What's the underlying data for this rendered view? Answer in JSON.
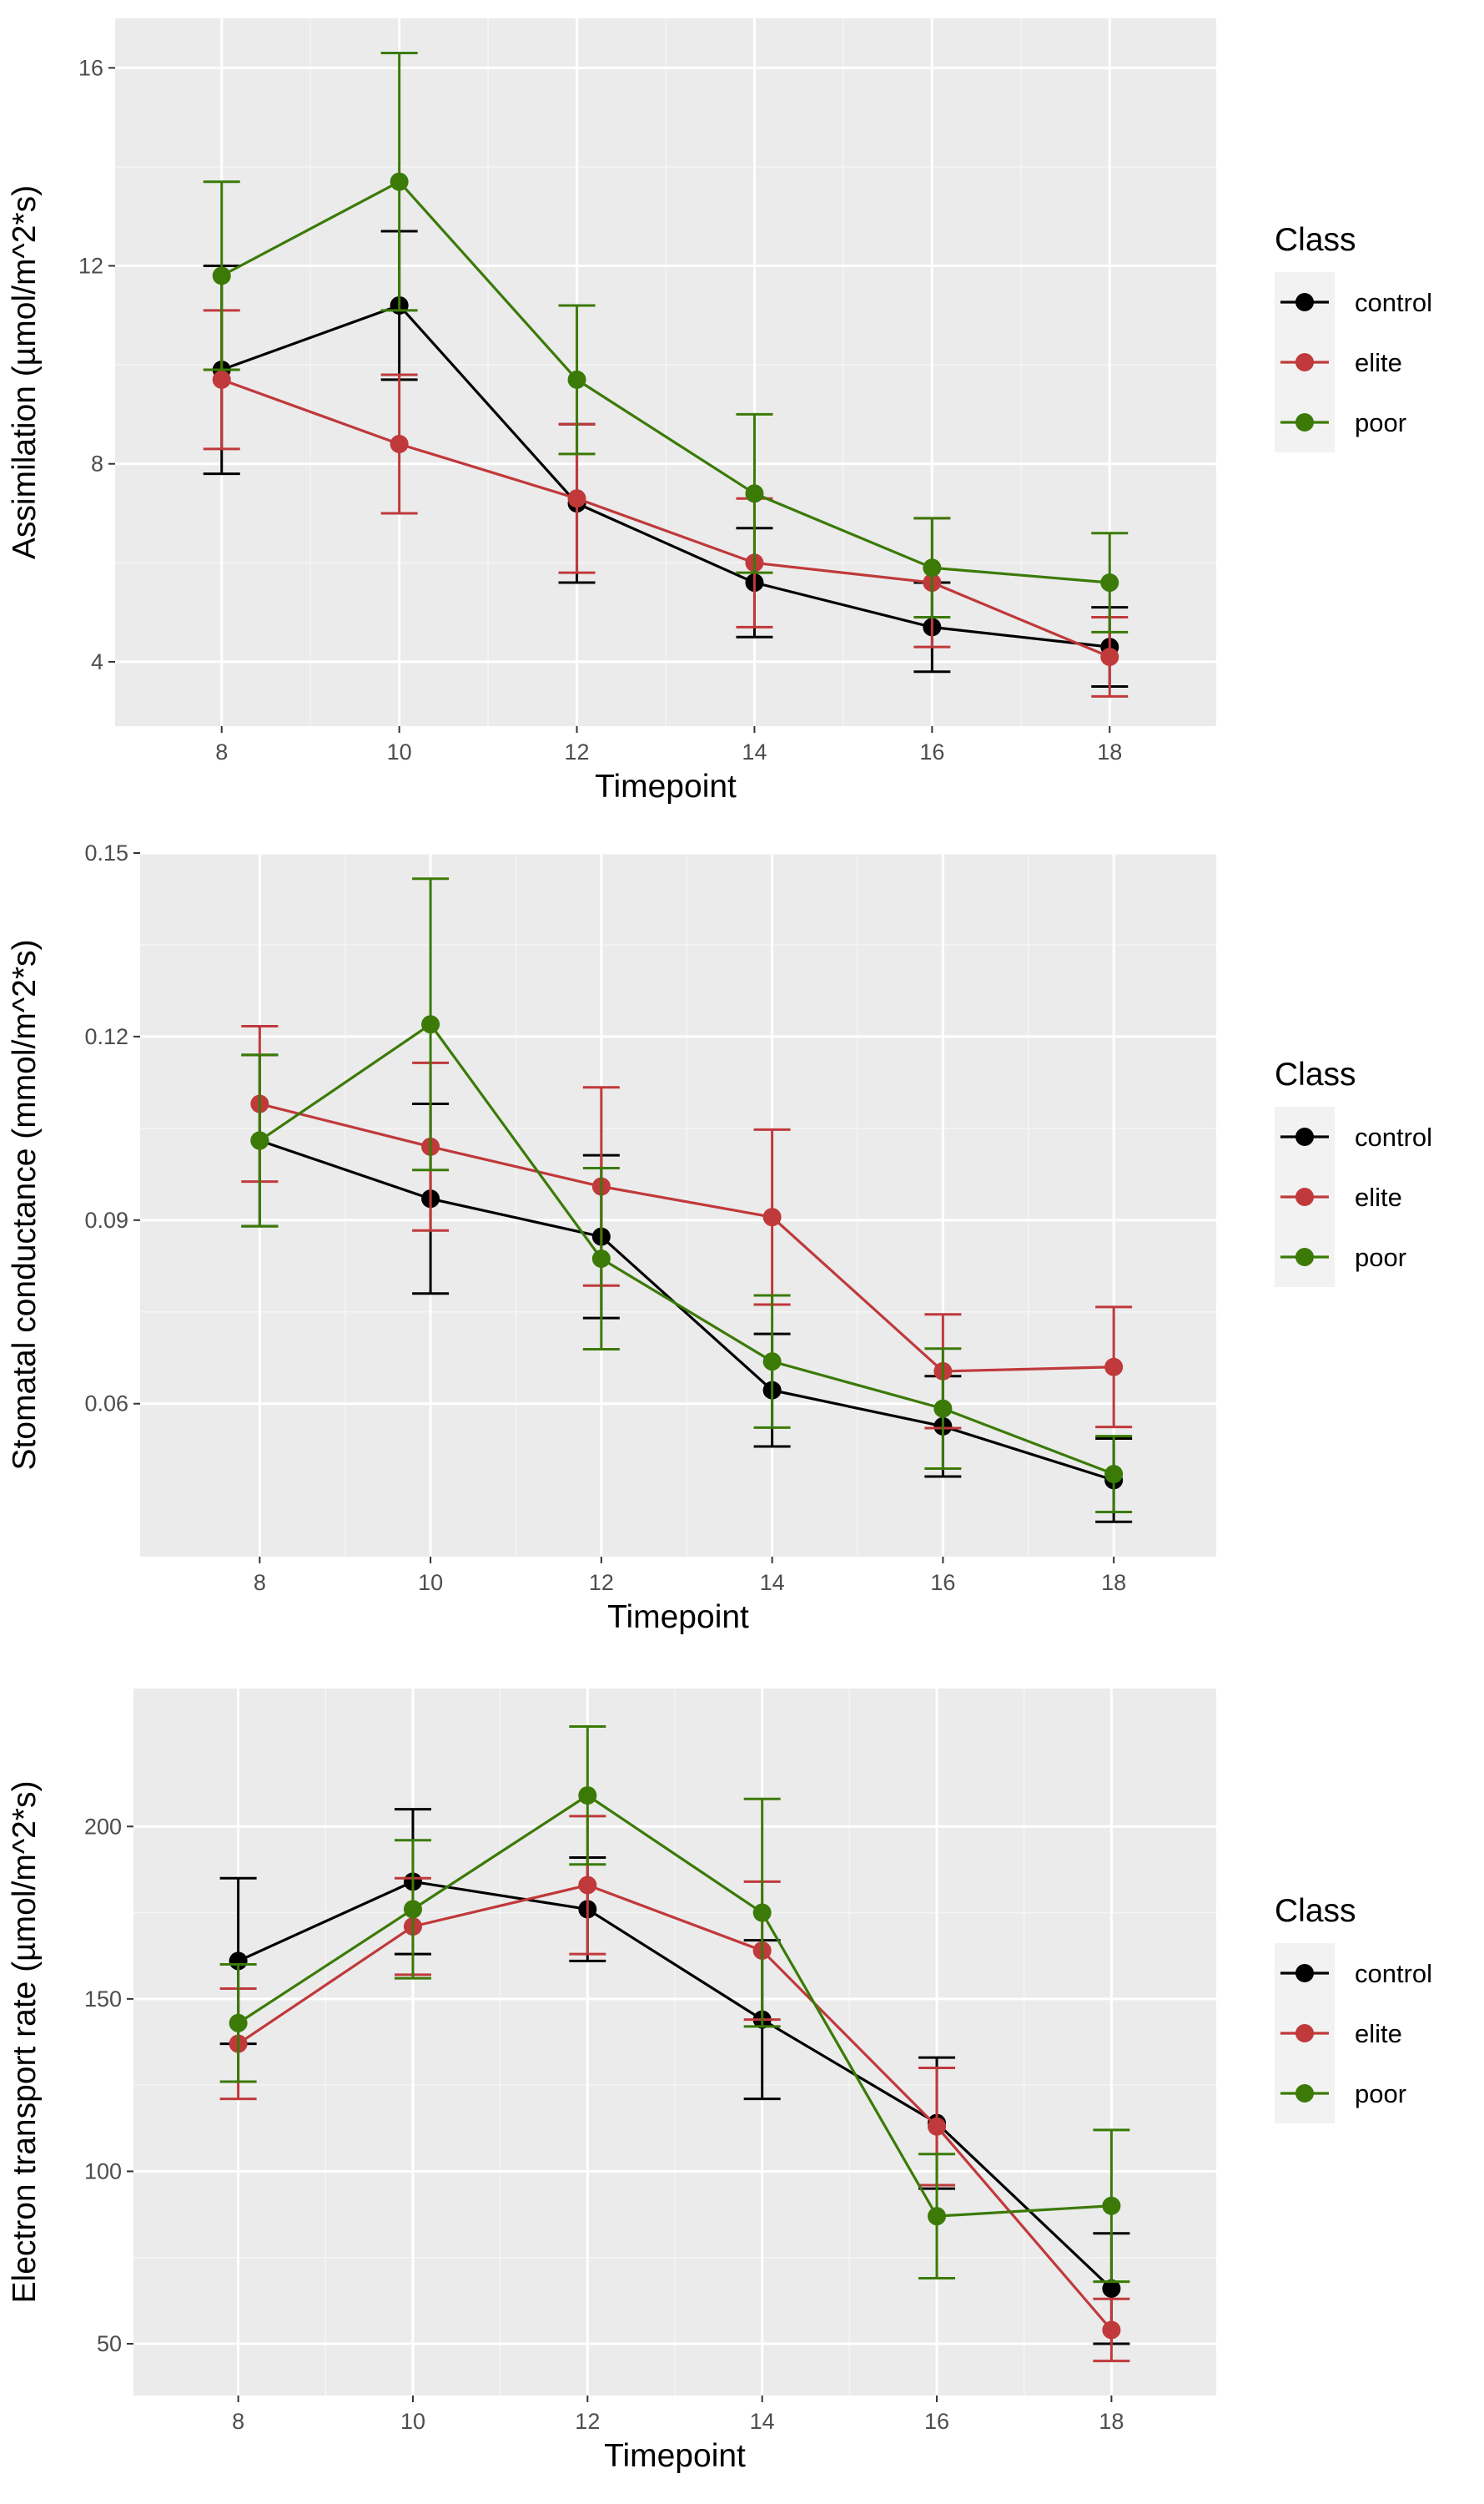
{
  "chart_data": [
    {
      "type": "line",
      "xlabel": "Timepoint",
      "ylabel": "Assimilation (µmol/m^2*s)",
      "x": [
        8,
        10,
        12,
        14,
        16,
        18
      ],
      "xlim": [
        6.8,
        19.2
      ],
      "ylim": [
        2.7,
        17.0
      ],
      "yticks": [
        4,
        8,
        12,
        16
      ],
      "ytick_labels": [
        "4",
        "8",
        "12",
        "16"
      ],
      "grid": true,
      "legend": {
        "title": "Class",
        "position": "right",
        "labels": [
          "control",
          "elite",
          "poor"
        ]
      },
      "series": [
        {
          "name": "control",
          "color": "#000000",
          "values": [
            9.9,
            11.2,
            7.2,
            5.6,
            4.7,
            4.3
          ],
          "err": [
            2.1,
            1.5,
            1.6,
            1.1,
            0.9,
            0.8
          ]
        },
        {
          "name": "elite",
          "color": "#c0393b",
          "values": [
            9.7,
            8.4,
            7.3,
            6.0,
            5.6,
            4.1
          ],
          "err": [
            1.4,
            1.4,
            1.5,
            1.3,
            1.3,
            0.8
          ]
        },
        {
          "name": "poor",
          "color": "#3b7a07",
          "values": [
            11.8,
            13.7,
            9.7,
            7.4,
            5.9,
            5.6
          ],
          "err": [
            1.9,
            2.6,
            1.5,
            1.6,
            1.0,
            1.0
          ]
        }
      ]
    },
    {
      "type": "line",
      "xlabel": "Timepoint",
      "ylabel": "Stomatal conductance (mmol/m^2*s)",
      "x": [
        8,
        10,
        12,
        14,
        16,
        18
      ],
      "xlim": [
        6.6,
        19.2
      ],
      "ylim": [
        0.035,
        0.15
      ],
      "yticks": [
        0.06,
        0.09,
        0.12,
        0.15
      ],
      "ytick_labels": [
        "0.06",
        "0.09",
        "0.12",
        "0.15"
      ],
      "grid": true,
      "legend": {
        "title": "Class",
        "position": "right",
        "labels": [
          "control",
          "elite",
          "poor"
        ]
      },
      "series": [
        {
          "name": "control",
          "color": "#000000",
          "values": [
            0.103,
            0.0935,
            0.0873,
            0.0622,
            0.0563,
            0.0475
          ],
          "err": [
            0.014,
            0.0155,
            0.0133,
            0.0092,
            0.0082,
            0.0068
          ]
        },
        {
          "name": "elite",
          "color": "#c0393b",
          "values": [
            0.109,
            0.102,
            0.0955,
            0.0905,
            0.0653,
            0.066
          ],
          "err": [
            0.0127,
            0.0137,
            0.0162,
            0.0143,
            0.0093,
            0.0098
          ]
        },
        {
          "name": "poor",
          "color": "#3b7a07",
          "values": [
            0.103,
            0.122,
            0.0837,
            0.0669,
            0.0592,
            0.0485
          ],
          "err": [
            0.014,
            0.0238,
            0.0148,
            0.0108,
            0.0098,
            0.0062
          ]
        }
      ]
    },
    {
      "type": "line",
      "xlabel": "Timepoint",
      "ylabel": "Electron transport rate (µmol/m^2*s)",
      "x": [
        8,
        10,
        12,
        14,
        16,
        18
      ],
      "xlim": [
        6.8,
        19.2
      ],
      "ylim": [
        35,
        240
      ],
      "yticks": [
        50,
        100,
        150,
        200
      ],
      "ytick_labels": [
        "50",
        "100",
        "150",
        "200"
      ],
      "grid": true,
      "legend": {
        "title": "Class",
        "position": "right",
        "labels": [
          "control",
          "elite",
          "poor"
        ]
      },
      "series": [
        {
          "name": "control",
          "color": "#000000",
          "values": [
            161,
            184,
            176,
            144,
            114,
            66
          ],
          "err": [
            24,
            21,
            15,
            23,
            19,
            16
          ]
        },
        {
          "name": "elite",
          "color": "#c0393b",
          "values": [
            137,
            171,
            183,
            164,
            113,
            54
          ],
          "err": [
            16,
            14,
            20,
            20,
            17,
            9
          ]
        },
        {
          "name": "poor",
          "color": "#3b7a07",
          "values": [
            143,
            176,
            209,
            175,
            87,
            90
          ],
          "err": [
            17,
            20,
            20,
            33,
            18,
            22
          ]
        }
      ]
    }
  ]
}
